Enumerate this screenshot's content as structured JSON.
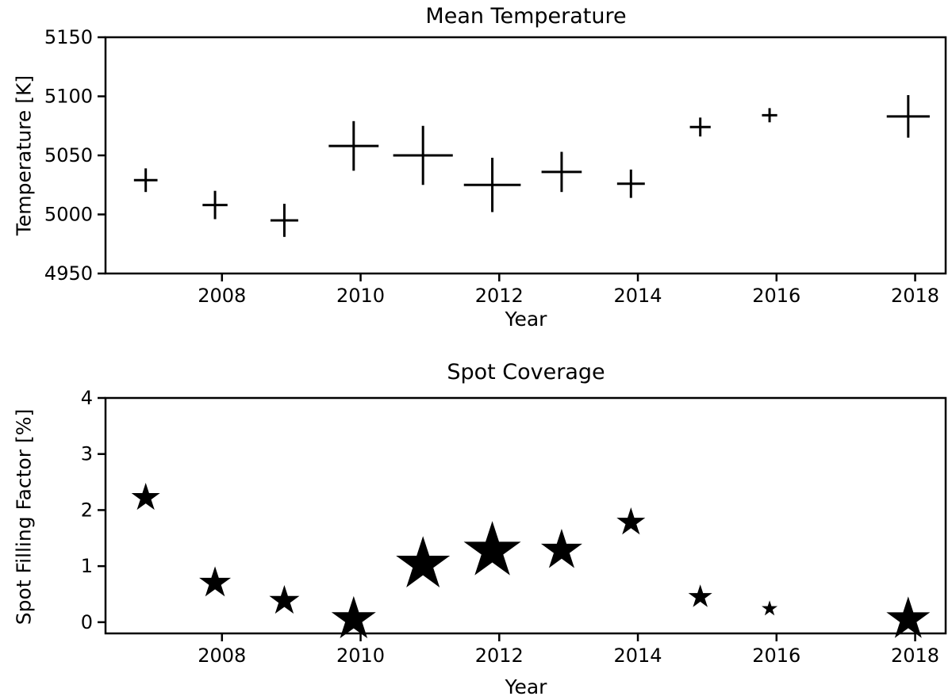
{
  "figure": {
    "background": "#ffffff",
    "text_color": "#000000",
    "axis_color": "#000000"
  },
  "chart_data": [
    {
      "type": "scatter",
      "title": "Mean Temperature",
      "xlabel": "Year",
      "ylabel": "Temperature [K]",
      "marker": "errorbar-cross",
      "marker_color": "#000000",
      "grid": false,
      "legend": "none",
      "xlim": [
        2006.32,
        2018.44
      ],
      "ylim": [
        4950,
        5150
      ],
      "x_ticks": [
        2008,
        2010,
        2012,
        2014,
        2016,
        2018
      ],
      "y_ticks": [
        4950,
        5000,
        5050,
        5100,
        5150
      ],
      "points": [
        {
          "x": 2006.9,
          "y": 5029,
          "yerr": 10,
          "xerr": 0.17
        },
        {
          "x": 2007.9,
          "y": 5008,
          "yerr": 12,
          "xerr": 0.18
        },
        {
          "x": 2008.9,
          "y": 4995,
          "yerr": 14,
          "xerr": 0.2
        },
        {
          "x": 2009.9,
          "y": 5058,
          "yerr": 21,
          "xerr": 0.36
        },
        {
          "x": 2010.9,
          "y": 5050,
          "yerr": 25,
          "xerr": 0.43
        },
        {
          "x": 2011.9,
          "y": 5025,
          "yerr": 23,
          "xerr": 0.41
        },
        {
          "x": 2012.9,
          "y": 5036,
          "yerr": 17,
          "xerr": 0.29
        },
        {
          "x": 2013.9,
          "y": 5026,
          "yerr": 12,
          "xerr": 0.2
        },
        {
          "x": 2014.9,
          "y": 5074,
          "yerr": 8,
          "xerr": 0.15
        },
        {
          "x": 2015.9,
          "y": 5084,
          "yerr": 6,
          "xerr": 0.11
        },
        {
          "x": 2017.9,
          "y": 5083,
          "yerr": 18,
          "xerr": 0.31
        }
      ]
    },
    {
      "type": "scatter",
      "title": "Spot Coverage",
      "xlabel": "Year",
      "ylabel": "Spot Filling Factor [%]",
      "marker": "star",
      "marker_color": "#000000",
      "grid": false,
      "legend": "none",
      "xlim": [
        2006.32,
        2018.44
      ],
      "ylim": [
        -0.2,
        4.0
      ],
      "x_ticks": [
        2008,
        2010,
        2012,
        2014,
        2016,
        2018
      ],
      "y_ticks": [
        0,
        1,
        2,
        3,
        4
      ],
      "points": [
        {
          "x": 2006.9,
          "y": 2.22,
          "size": 36
        },
        {
          "x": 2007.9,
          "y": 0.7,
          "size": 40
        },
        {
          "x": 2008.9,
          "y": 0.38,
          "size": 38
        },
        {
          "x": 2009.9,
          "y": 0.05,
          "size": 56
        },
        {
          "x": 2010.9,
          "y": 1.03,
          "size": 68
        },
        {
          "x": 2011.9,
          "y": 1.27,
          "size": 72
        },
        {
          "x": 2012.9,
          "y": 1.28,
          "size": 52
        },
        {
          "x": 2013.9,
          "y": 1.78,
          "size": 36
        },
        {
          "x": 2014.9,
          "y": 0.45,
          "size": 30
        },
        {
          "x": 2015.9,
          "y": 0.24,
          "size": 20
        },
        {
          "x": 2017.9,
          "y": 0.05,
          "size": 55
        }
      ]
    }
  ]
}
